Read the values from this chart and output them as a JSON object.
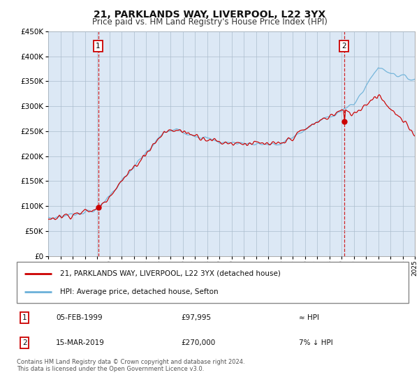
{
  "title": "21, PARKLANDS WAY, LIVERPOOL, L22 3YX",
  "subtitle": "Price paid vs. HM Land Registry's House Price Index (HPI)",
  "legend_line1": "21, PARKLANDS WAY, LIVERPOOL, L22 3YX (detached house)",
  "legend_line2": "HPI: Average price, detached house, Sefton",
  "annotation1_label": "1",
  "annotation1_date": "05-FEB-1999",
  "annotation1_price": "£97,995",
  "annotation1_hpi": "≈ HPI",
  "annotation2_label": "2",
  "annotation2_date": "15-MAR-2019",
  "annotation2_price": "£270,000",
  "annotation2_hpi": "7% ↓ HPI",
  "footnote": "Contains HM Land Registry data © Crown copyright and database right 2024.\nThis data is licensed under the Open Government Licence v3.0.",
  "sale1_year": 1999.09,
  "sale1_value": 97995,
  "sale2_year": 2019.21,
  "sale2_value": 270000,
  "hpi_color": "#6ab0d8",
  "price_color": "#CC0000",
  "chart_bg": "#dce8f5",
  "background_color": "#FFFFFF",
  "grid_color": "#AABCCC",
  "ylim_min": 0,
  "ylim_max": 450000,
  "xlim_min": 1995,
  "xlim_max": 2025
}
